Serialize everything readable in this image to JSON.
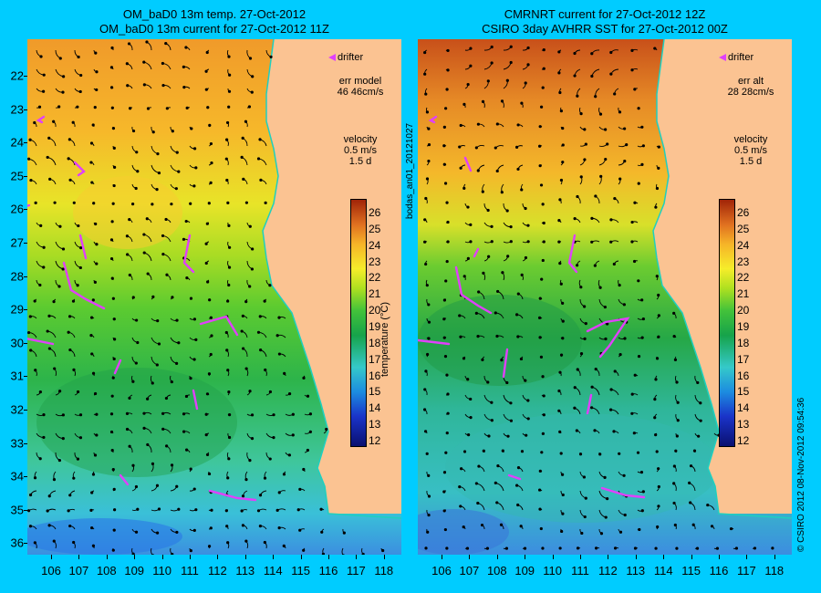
{
  "left_panel": {
    "title_line1": "OM_baD0 13m temp. 27-Oct-2012",
    "title_line2": "OM_baD0 13m current for 27-Oct-2012 11Z",
    "err_label": "err model",
    "err_value": "46 46cm/s"
  },
  "right_panel": {
    "title_line1": "CMRNRT current for 27-Oct-2012 12Z",
    "title_line2": "CSIRO 3day AVHRR SST for 27-Oct-2012 00Z",
    "err_label": "err alt",
    "err_value": "28 28cm/s"
  },
  "legend": {
    "drifter": "drifter",
    "velocity": "velocity",
    "velocity_scale": "0.5 m/s",
    "time_scale": "1.5 d"
  },
  "colorbar": {
    "title": "temperature (°C)",
    "ticks": [
      "26",
      "25",
      "24",
      "23",
      "22",
      "21",
      "20",
      "19",
      "18",
      "17",
      "16",
      "15",
      "14",
      "13",
      "12"
    ]
  },
  "lat_ticks": [
    "22",
    "23",
    "24",
    "25",
    "26",
    "27",
    "28",
    "29",
    "30",
    "31",
    "32",
    "33",
    "34",
    "35",
    "36"
  ],
  "lon_ticks": [
    "106",
    "107",
    "108",
    "109",
    "110",
    "111",
    "112",
    "113",
    "114",
    "115",
    "116",
    "117",
    "118"
  ],
  "side_text": {
    "left": "bodas_an01_20121027",
    "right": "© CSIRO 2012  08-Nov-2012 09:54:36"
  },
  "colors": {
    "background": "#00ccff",
    "land": "#fbc392",
    "coast": "#40e0d0",
    "drifter": "#e040fb"
  }
}
